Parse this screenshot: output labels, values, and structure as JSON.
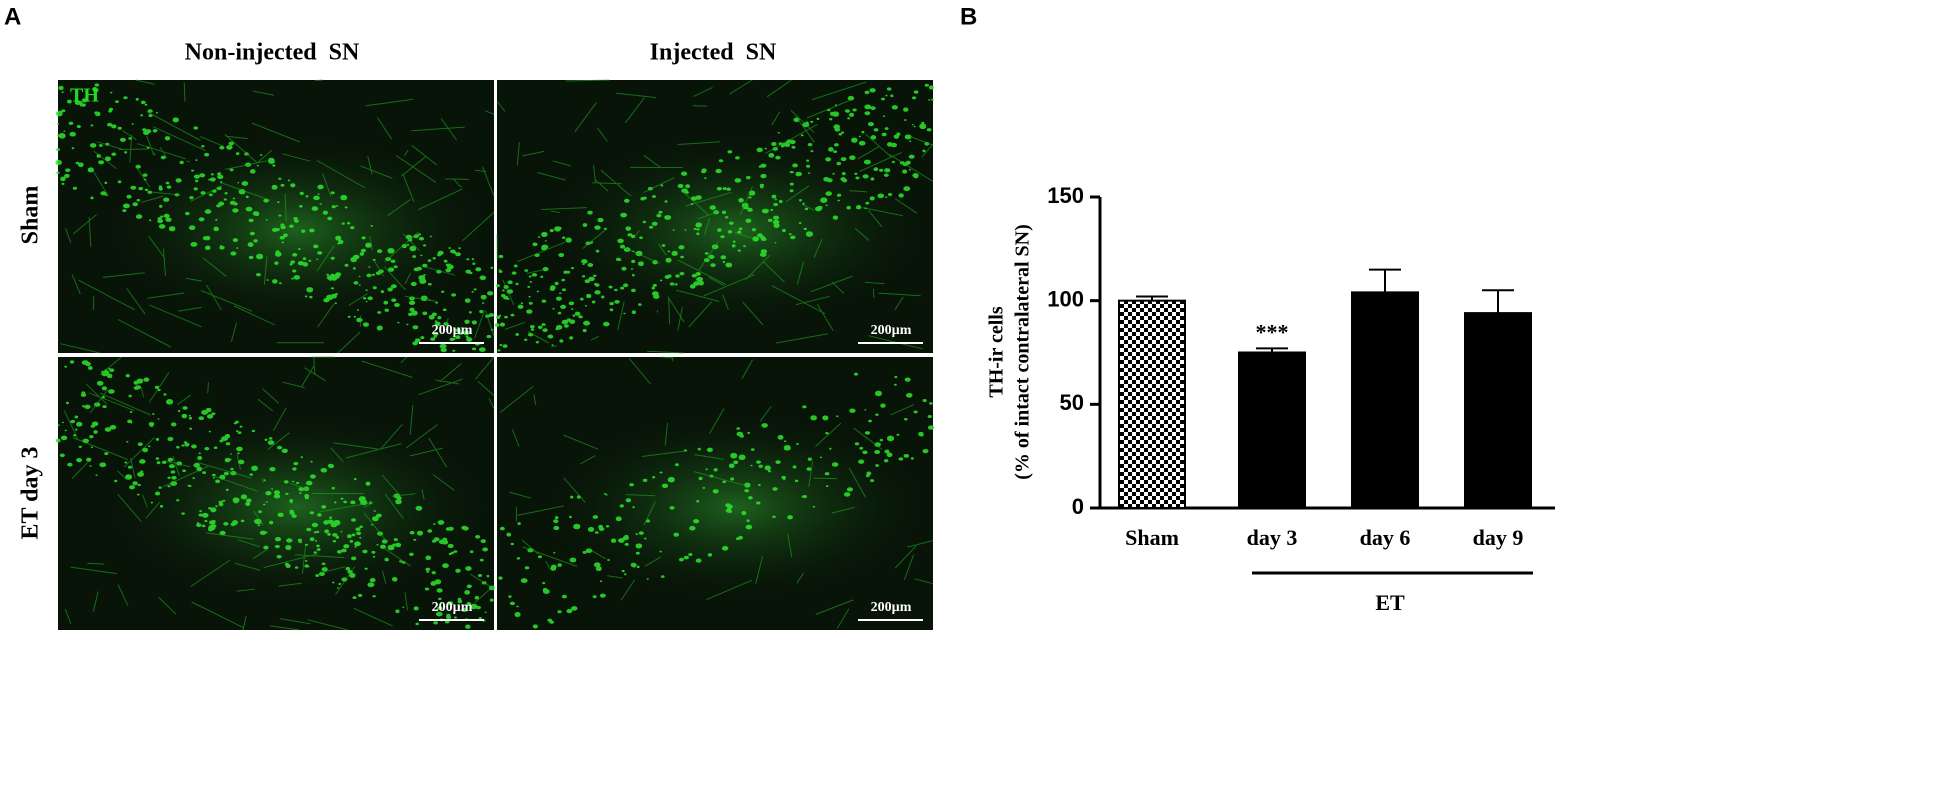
{
  "panel_labels": [
    "A",
    "B"
  ],
  "microscopy": {
    "column_titles": [
      "Non-injected  SN",
      "Injected  SN"
    ],
    "row_labels": [
      "Sham",
      "ET day 3"
    ],
    "stain_label": "TH",
    "scale_bars": [
      "200µm",
      "200µm",
      "200µm",
      "200µm"
    ]
  },
  "chart_data": {
    "type": "bar",
    "y_label": [
      "TH-ir cells",
      "(% of intact contralateral SN)"
    ],
    "categories": [
      "Sham",
      "day 3",
      "day 6",
      "day 9"
    ],
    "values": [
      100,
      75,
      104,
      94
    ],
    "errors": [
      2,
      2,
      11,
      11
    ],
    "patterns": [
      "checkerboard",
      null,
      null,
      null
    ],
    "color": "#000000",
    "significance": [
      null,
      "***",
      null,
      null
    ],
    "group_label": "ET",
    "ylim": [
      0,
      150
    ],
    "yticks": [
      0,
      50,
      100,
      150
    ],
    "grid": false
  }
}
